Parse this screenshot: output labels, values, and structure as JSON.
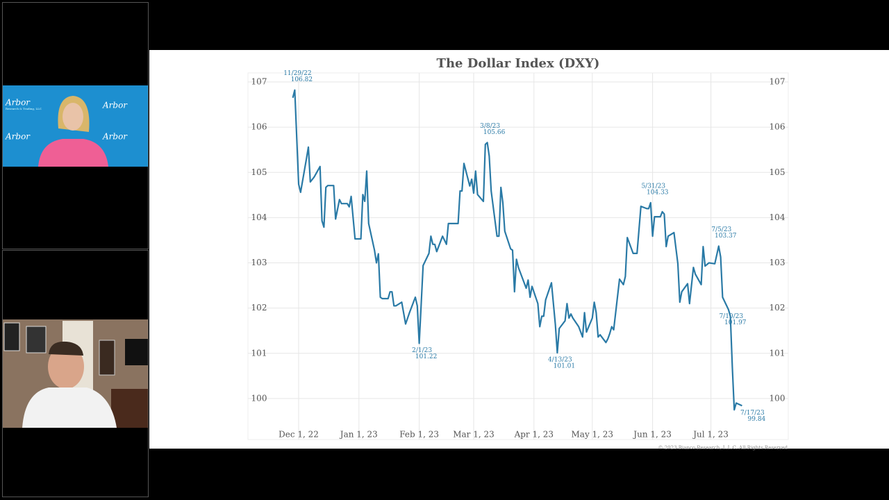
{
  "video_tiles": {
    "logo": "Arbor",
    "logo_sub": "Research & Trading, LLC"
  },
  "copyright": "© 2023 Bianco Research, L.L.C. All Rights Reserved",
  "chart_data": {
    "type": "line",
    "title": "The Dollar Index (DXY)",
    "color": "#2a7aa6",
    "grid": true,
    "x": [
      "2022-11-28",
      "2022-11-29",
      "2022-12-01",
      "2022-12-02",
      "2022-12-05",
      "2022-12-06",
      "2022-12-07",
      "2022-12-09",
      "2022-12-12",
      "2022-12-13",
      "2022-12-14",
      "2022-12-15",
      "2022-12-16",
      "2022-12-19",
      "2022-12-20",
      "2022-12-22",
      "2022-12-23",
      "2022-12-26",
      "2022-12-27",
      "2022-12-28",
      "2022-12-30",
      "2023-01-02",
      "2023-01-03",
      "2023-01-04",
      "2023-01-05",
      "2023-01-06",
      "2023-01-09",
      "2023-01-10",
      "2023-01-11",
      "2023-01-12",
      "2023-01-13",
      "2023-01-16",
      "2023-01-17",
      "2023-01-18",
      "2023-01-19",
      "2023-01-20",
      "2023-01-23",
      "2023-01-25",
      "2023-01-27",
      "2023-01-30",
      "2023-01-31",
      "2023-02-01",
      "2023-02-03",
      "2023-02-06",
      "2023-02-07",
      "2023-02-08",
      "2023-02-09",
      "2023-02-10",
      "2023-02-13",
      "2023-02-15",
      "2023-02-16",
      "2023-02-20",
      "2023-02-21",
      "2023-02-22",
      "2023-02-23",
      "2023-02-24",
      "2023-02-27",
      "2023-02-28",
      "2023-03-01",
      "2023-03-02",
      "2023-03-03",
      "2023-03-06",
      "2023-03-07",
      "2023-03-08",
      "2023-03-09",
      "2023-03-10",
      "2023-03-13",
      "2023-03-14",
      "2023-03-15",
      "2023-03-16",
      "2023-03-17",
      "2023-03-20",
      "2023-03-21",
      "2023-03-22",
      "2023-03-23",
      "2023-03-24",
      "2023-03-28",
      "2023-03-29",
      "2023-03-30",
      "2023-03-31",
      "2023-04-03",
      "2023-04-04",
      "2023-04-05",
      "2023-04-06",
      "2023-04-07",
      "2023-04-10",
      "2023-04-12",
      "2023-04-13",
      "2023-04-14",
      "2023-04-17",
      "2023-04-18",
      "2023-04-19",
      "2023-04-20",
      "2023-04-21",
      "2023-04-24",
      "2023-04-26",
      "2023-04-27",
      "2023-04-28",
      "2023-05-01",
      "2023-05-02",
      "2023-05-03",
      "2023-05-04",
      "2023-05-05",
      "2023-05-08",
      "2023-05-09",
      "2023-05-10",
      "2023-05-11",
      "2023-05-12",
      "2023-05-15",
      "2023-05-17",
      "2023-05-18",
      "2023-05-19",
      "2023-05-22",
      "2023-05-24",
      "2023-05-26",
      "2023-05-29",
      "2023-05-30",
      "2023-05-31",
      "2023-06-01",
      "2023-06-02",
      "2023-06-05",
      "2023-06-06",
      "2023-06-07",
      "2023-06-08",
      "2023-06-09",
      "2023-06-12",
      "2023-06-14",
      "2023-06-15",
      "2023-06-16",
      "2023-06-19",
      "2023-06-20",
      "2023-06-22",
      "2023-06-23",
      "2023-06-26",
      "2023-06-27",
      "2023-06-28",
      "2023-06-30",
      "2023-07-03",
      "2023-07-05",
      "2023-07-06",
      "2023-07-07",
      "2023-07-10",
      "2023-07-11",
      "2023-07-12",
      "2023-07-13",
      "2023-07-14",
      "2023-07-17"
    ],
    "values": [
      106.65,
      106.82,
      104.74,
      104.56,
      105.3,
      105.56,
      104.79,
      104.9,
      105.13,
      103.93,
      103.79,
      104.67,
      104.71,
      104.71,
      103.97,
      104.4,
      104.31,
      104.31,
      104.24,
      104.47,
      103.53,
      103.53,
      104.51,
      104.36,
      105.03,
      103.87,
      103.28,
      103.0,
      103.2,
      102.24,
      102.21,
      102.21,
      102.36,
      102.36,
      102.05,
      102.05,
      102.13,
      101.65,
      101.9,
      102.24,
      102.05,
      101.22,
      102.94,
      103.21,
      103.59,
      103.41,
      103.41,
      103.25,
      103.59,
      103.41,
      103.87,
      103.87,
      103.87,
      104.59,
      104.59,
      105.2,
      104.7,
      104.85,
      104.54,
      105.03,
      104.51,
      104.36,
      105.62,
      105.66,
      105.36,
      104.59,
      103.59,
      103.59,
      104.67,
      104.33,
      103.7,
      103.31,
      103.28,
      102.36,
      103.08,
      102.9,
      102.44,
      102.62,
      102.24,
      102.48,
      102.1,
      101.59,
      101.82,
      101.82,
      102.18,
      102.56,
      101.64,
      101.01,
      101.55,
      101.72,
      102.1,
      101.78,
      101.87,
      101.78,
      101.59,
      101.36,
      101.9,
      101.47,
      101.78,
      102.13,
      101.9,
      101.36,
      101.41,
      101.24,
      101.32,
      101.44,
      101.59,
      101.52,
      102.64,
      102.52,
      102.7,
      103.56,
      103.21,
      103.21,
      104.25,
      104.2,
      104.2,
      104.33,
      103.59,
      104.02,
      104.02,
      104.13,
      104.08,
      103.36,
      103.59,
      103.67,
      102.98,
      102.13,
      102.36,
      102.54,
      102.1,
      102.9,
      102.75,
      102.52,
      103.36,
      102.93,
      103.0,
      102.98,
      103.37,
      103.13,
      102.24,
      101.97,
      101.82,
      100.7,
      99.75,
      99.9,
      99.84
    ],
    "xlim": [
      "2022-11-16",
      "2023-07-29"
    ],
    "xticks": [
      {
        "value": "2022-12-01",
        "label": "Dec 1, 22"
      },
      {
        "value": "2023-01-01",
        "label": "Jan 1, 23"
      },
      {
        "value": "2023-02-01",
        "label": "Feb 1, 23"
      },
      {
        "value": "2023-03-01",
        "label": "Mar 1, 23"
      },
      {
        "value": "2023-04-01",
        "label": "Apr 1, 23"
      },
      {
        "value": "2023-05-01",
        "label": "May 1, 23"
      },
      {
        "value": "2023-06-01",
        "label": "Jun 1, 23"
      },
      {
        "value": "2023-07-01",
        "label": "Jul 1, 23"
      }
    ],
    "ylim": [
      99.4,
      107.2
    ],
    "yticks": [
      100,
      101,
      102,
      103,
      104,
      105,
      106,
      107
    ],
    "annotations": [
      {
        "x": "2022-11-29",
        "date_label": "11/29/22",
        "value": 106.82
      },
      {
        "x": "2023-02-01",
        "date_label": "2/1/23",
        "value": 101.22
      },
      {
        "x": "2023-03-08",
        "date_label": "3/8/23",
        "value": 105.66
      },
      {
        "x": "2023-04-13",
        "date_label": "4/13/23",
        "value": 101.01
      },
      {
        "x": "2023-05-31",
        "date_label": "5/31/23",
        "value": 104.33
      },
      {
        "x": "2023-07-05",
        "date_label": "7/5/23",
        "value": 103.37
      },
      {
        "x": "2023-07-10",
        "date_label": "7/10/23",
        "value": 101.97
      },
      {
        "x": "2023-07-17",
        "date_label": "7/17/23",
        "value": 99.84
      }
    ]
  }
}
